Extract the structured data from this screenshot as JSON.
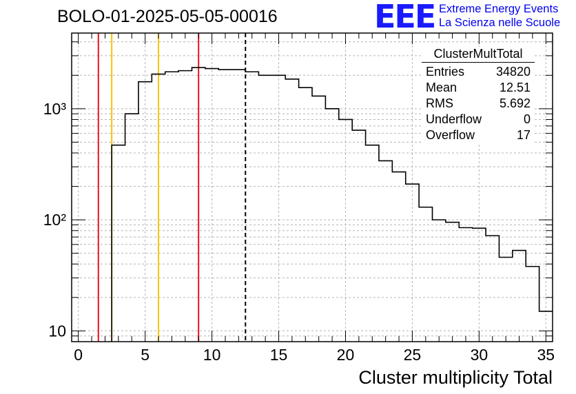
{
  "chart_data": {
    "type": "bar",
    "title": "BOLO-01-2025-05-05-00016",
    "xlabel": "Cluster multiplicity Total",
    "ylabel": "",
    "xlim": [
      -0.5,
      35.5
    ],
    "ylim": [
      8,
      4800
    ],
    "y_scale": "log",
    "grid": true,
    "x_ticks": [
      "0",
      "5",
      "10",
      "15",
      "20",
      "25",
      "30",
      "35"
    ],
    "x_tick_values": [
      0,
      5,
      10,
      15,
      20,
      25,
      30,
      35
    ],
    "y_ticks": [
      "10",
      "10²",
      "10³"
    ],
    "y_tick_values": [
      10,
      100,
      1000
    ],
    "bin_edges": [
      -0.5,
      0.5,
      1.5,
      2.5,
      3.5,
      4.5,
      5.5,
      6.5,
      7.5,
      8.5,
      9.5,
      10.5,
      11.5,
      12.5,
      13.5,
      14.5,
      15.5,
      16.5,
      17.5,
      18.5,
      19.5,
      20.5,
      21.5,
      22.5,
      23.5,
      24.5,
      25.5,
      26.5,
      27.5,
      28.5,
      29.5,
      30.5,
      31.5,
      32.5,
      33.5,
      34.5,
      35.5
    ],
    "values": [
      0,
      0,
      0,
      470,
      900,
      1750,
      2050,
      2150,
      2200,
      2350,
      2300,
      2250,
      2250,
      2150,
      2000,
      2000,
      1850,
      1550,
      1300,
      1000,
      800,
      640,
      470,
      340,
      270,
      210,
      130,
      100,
      95,
      85,
      84,
      72,
      46,
      53,
      38,
      15
    ],
    "reference_lines": [
      {
        "x": 1.5,
        "color": "#e8121b",
        "style": "solid"
      },
      {
        "x": 2.5,
        "color": "#f5c300",
        "style": "solid"
      },
      {
        "x": 6.0,
        "color": "#f5c300",
        "style": "solid"
      },
      {
        "x": 9.0,
        "color": "#e8121b",
        "style": "solid"
      },
      {
        "x": 12.51,
        "color": "#000000",
        "style": "dashed"
      }
    ],
    "stats": {
      "title": "ClusterMultTotal",
      "rows": [
        {
          "label": "Entries",
          "value": "34820"
        },
        {
          "label": "Mean",
          "value": "12.51"
        },
        {
          "label": "RMS",
          "value": "5.692"
        },
        {
          "label": "Underflow",
          "value": "0"
        },
        {
          "label": "Overflow",
          "value": "17"
        }
      ]
    }
  },
  "logo": {
    "mark": "EEE",
    "line1": "Extreme Energy Events",
    "line2": "La Scienza nelle Scuole",
    "color": "#1a1aff"
  }
}
